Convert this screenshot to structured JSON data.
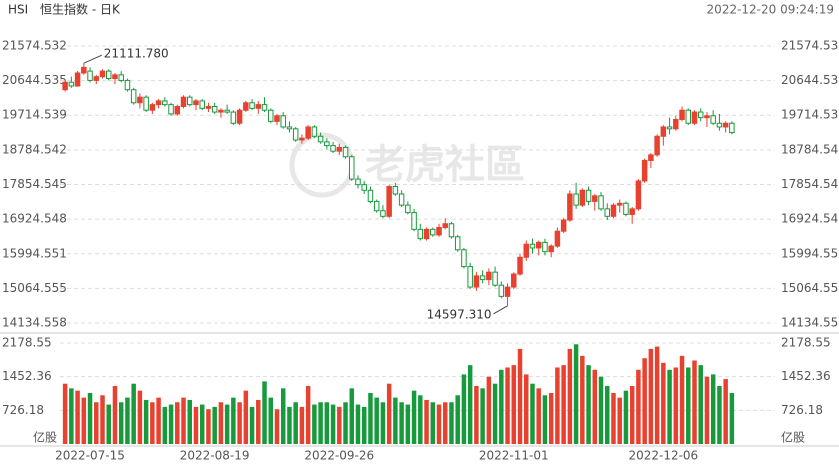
{
  "chart_data": {
    "type": "candlestick",
    "symbol": "HSI",
    "title": "恒生指数 - 日K",
    "timestamp": "2022-12-20 09:24:19",
    "watermark": "老虎社區",
    "up_color": "#e8412f",
    "down_color": "#179a3c",
    "categories": [
      null,
      null,
      null,
      null,
      "2022-07-15",
      null,
      null,
      null,
      null,
      null,
      null,
      null,
      null,
      null,
      null,
      null,
      null,
      null,
      null,
      null,
      null,
      null,
      null,
      null,
      "2022-08-19",
      null,
      null,
      null,
      null,
      null,
      null,
      null,
      null,
      null,
      null,
      null,
      null,
      null,
      null,
      null,
      null,
      null,
      null,
      null,
      "2022-09-26",
      null,
      null,
      null,
      null,
      null,
      null,
      null,
      null,
      null,
      null,
      null,
      null,
      null,
      null,
      null,
      null,
      null,
      null,
      null,
      null,
      null,
      null,
      null,
      null,
      null,
      null,
      null,
      "2022-11-01",
      null,
      null,
      null,
      null,
      null,
      null,
      null,
      null,
      null,
      null,
      null,
      null,
      null,
      null,
      null,
      null,
      null,
      null,
      null,
      null,
      null,
      null,
      null,
      "2022-12-06",
      null,
      null,
      null,
      null,
      null,
      null,
      null,
      null,
      null,
      null,
      null
    ],
    "open": [
      20400,
      20600,
      20500,
      20850,
      20900,
      20650,
      20750,
      20900,
      20700,
      20800,
      20650,
      20400,
      20050,
      20200,
      19850,
      20000,
      20100,
      20000,
      19750,
      19950,
      20200,
      20000,
      20100,
      19900,
      19950,
      19800,
      19850,
      19800,
      19500,
      19850,
      20050,
      19900,
      20000,
      19850,
      19550,
      19700,
      19400,
      19350,
      19050,
      19100,
      19400,
      19150,
      19000,
      18900,
      18750,
      18850,
      18600,
      18000,
      17850,
      17700,
      17400,
      17150,
      17000,
      17800,
      17600,
      17300,
      17100,
      16650,
      16400,
      16650,
      16500,
      16700,
      16800,
      16450,
      16100,
      15650,
      15100,
      15400,
      15300,
      15500,
      15150,
      14850,
      15100,
      15450,
      15900,
      16250,
      16150,
      16300,
      16050,
      16200,
      16600,
      16900,
      17600,
      17300,
      17700,
      17400,
      17550,
      17200,
      17000,
      17300,
      17350,
      17050,
      17200,
      17950,
      18500,
      18650,
      19150,
      19400,
      19350,
      19600,
      19850,
      19500,
      19800,
      19650,
      19700,
      19500,
      19400,
      19500
    ],
    "high": [
      20650,
      20750,
      20900,
      21111.78,
      21000,
      20800,
      20950,
      20950,
      20850,
      20900,
      20700,
      20450,
      20300,
      20250,
      20050,
      20150,
      20200,
      20050,
      20000,
      20250,
      20250,
      20150,
      20150,
      20050,
      20050,
      19900,
      20000,
      19850,
      19900,
      20100,
      20150,
      20100,
      20200,
      19900,
      19750,
      19800,
      19550,
      19400,
      19200,
      19450,
      19450,
      19250,
      19100,
      19000,
      18950,
      18900,
      18650,
      18100,
      17950,
      17800,
      17450,
      17300,
      17850,
      17900,
      17700,
      17400,
      17200,
      16800,
      16700,
      16700,
      16800,
      16950,
      16850,
      16500,
      16150,
      15750,
      15500,
      15550,
      15600,
      15650,
      15250,
      15200,
      15500,
      16000,
      16350,
      16400,
      16350,
      16400,
      16250,
      16700,
      16950,
      17700,
      17900,
      17750,
      17800,
      17600,
      17650,
      17350,
      17350,
      17450,
      17400,
      17250,
      18000,
      18550,
      18700,
      19200,
      19450,
      19650,
      19700,
      19950,
      19900,
      19850,
      19900,
      19800,
      19850,
      19750,
      19550,
      19550
    ],
    "low": [
      20350,
      20450,
      20480,
      20800,
      20600,
      20550,
      20700,
      20650,
      20550,
      20600,
      20350,
      20000,
      19900,
      19800,
      19750,
      19900,
      19950,
      19700,
      19700,
      19900,
      19950,
      19850,
      19850,
      19800,
      19750,
      19650,
      19750,
      19450,
      19450,
      19800,
      19850,
      19750,
      19800,
      19500,
      19450,
      19350,
      19250,
      19000,
      18950,
      19050,
      19100,
      18950,
      18800,
      18700,
      18650,
      18550,
      17950,
      17750,
      17600,
      17350,
      17100,
      16950,
      16950,
      17550,
      17250,
      17050,
      16600,
      16350,
      16350,
      16450,
      16450,
      16650,
      16400,
      16050,
      15600,
      15050,
      15000,
      15200,
      15150,
      15100,
      14800,
      14597.31,
      15050,
      15400,
      15800,
      16000,
      15950,
      15950,
      15900,
      16150,
      16550,
      16850,
      17200,
      17250,
      17300,
      17150,
      17150,
      16900,
      16950,
      17100,
      17000,
      16800,
      17150,
      17900,
      18300,
      18600,
      18900,
      19200,
      19300,
      19550,
      19450,
      19450,
      19550,
      19400,
      19450,
      19300,
      19250,
      19200
    ],
    "close": [
      20600,
      20500,
      20850,
      21000,
      20650,
      20750,
      20900,
      20700,
      20800,
      20650,
      20400,
      20050,
      20200,
      19850,
      20000,
      20100,
      20000,
      19750,
      19950,
      20200,
      20000,
      20100,
      19900,
      19950,
      19800,
      19850,
      19800,
      19500,
      19850,
      20050,
      19900,
      20000,
      19850,
      19550,
      19700,
      19400,
      19350,
      19050,
      19100,
      19400,
      19150,
      19000,
      18900,
      18750,
      18850,
      18600,
      18000,
      17850,
      17700,
      17400,
      17150,
      17000,
      17800,
      17600,
      17300,
      17100,
      16650,
      16400,
      16650,
      16500,
      16700,
      16800,
      16450,
      16100,
      15650,
      15100,
      15400,
      15300,
      15500,
      15150,
      14850,
      15100,
      15450,
      15900,
      16250,
      16150,
      16300,
      16050,
      16200,
      16600,
      16900,
      17600,
      17300,
      17700,
      17400,
      17550,
      17200,
      17000,
      17300,
      17350,
      17050,
      17200,
      17950,
      18500,
      18650,
      19150,
      19400,
      19350,
      19600,
      19850,
      19500,
      19800,
      19650,
      19700,
      19500,
      19400,
      19500,
      19250
    ],
    "volume": [
      1300,
      1200,
      1150,
      1000,
      1100,
      900,
      1050,
      850,
      1250,
      900,
      1000,
      1300,
      1150,
      950,
      900,
      1000,
      800,
      850,
      900,
      1000,
      950,
      800,
      850,
      750,
      800,
      900,
      850,
      1000,
      900,
      1150,
      800,
      950,
      1350,
      1000,
      750,
      1200,
      800,
      900,
      800,
      1250,
      850,
      900,
      900,
      850,
      800,
      900,
      1200,
      850,
      800,
      1100,
      1000,
      900,
      1300,
      1000,
      900,
      850,
      1150,
      1050,
      950,
      900,
      850,
      900,
      900,
      1050,
      1500,
      1700,
      1250,
      1200,
      1450,
      1300,
      1600,
      1650,
      1700,
      2050,
      1500,
      1300,
      1200,
      1050,
      1100,
      1650,
      1700,
      2050,
      2150,
      1900,
      1700,
      1600,
      1450,
      1250,
      1100,
      1000,
      1150,
      1250,
      1600,
      1850,
      2050,
      2100,
      1750,
      1600,
      1650,
      1900,
      1650,
      1800,
      1700,
      1450,
      1500,
      1250,
      1400,
      1100
    ],
    "ylim": [
      14134.558,
      21574.532
    ],
    "yticks": [
      21574.532,
      20644.535,
      19714.539,
      18784.542,
      17854.545,
      16924.548,
      15994.551,
      15064.555,
      14134.558
    ],
    "volume_ylim": [
      0,
      2350
    ],
    "volume_yticks": [
      2178.55,
      1452.36,
      726.18
    ],
    "volume_unit": "亿股",
    "annotations": [
      {
        "label": "21111.780",
        "value": 21111.78
      },
      {
        "label": "14597.310",
        "value": 14597.31
      }
    ]
  }
}
